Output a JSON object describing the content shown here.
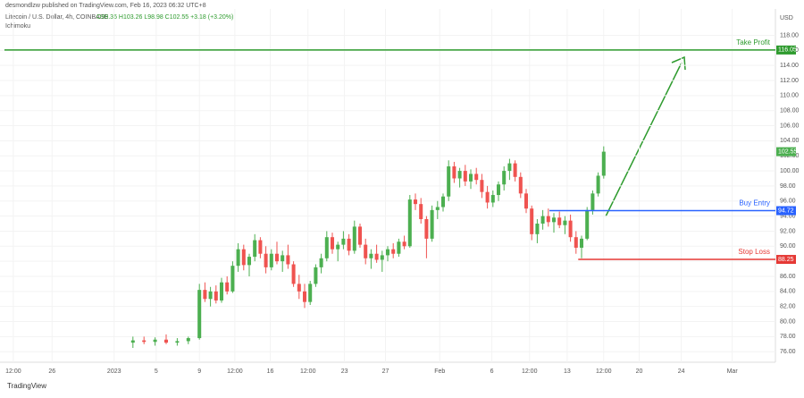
{
  "header": {
    "publisher": "desmondlzw published on TradingView.com, Feb 16, 2023 06:32 UTC+8",
    "symbol": "Litecoin / U.S. Dollar, 4h, COINBASE",
    "ohlc": "O99.36  H103.26  L98.98  C102.55  +3.18 (+3.20%)",
    "indicator": "Ichimoku"
  },
  "footer": {
    "brand": "TradingView"
  },
  "chart_data": {
    "type": "candlestick",
    "currency": "USD",
    "up_color": "#4caf50",
    "down_color": "#ef5350",
    "x": [
      12,
      13,
      14,
      15,
      16,
      17,
      18,
      18.5,
      19,
      19.5,
      20,
      20.5,
      21,
      21.5,
      22,
      22.5,
      23,
      23.5,
      24,
      24.5,
      25,
      25.5,
      26,
      26.5,
      27,
      27.5,
      28,
      28.5,
      29,
      29.5,
      30,
      30.5,
      31,
      31.5,
      32,
      32.5,
      33,
      33.5,
      34,
      34.5,
      35,
      35.5,
      36,
      36.5,
      37,
      37.5,
      38,
      38.5,
      39,
      39.5,
      40,
      40.5,
      41,
      41.5,
      42,
      42.5,
      43,
      43.5,
      44,
      44.5,
      45,
      45.5,
      46,
      46.5,
      47,
      47.5,
      48,
      48.5,
      49,
      49.5,
      50,
      50.5,
      51,
      51.5,
      52,
      52.5,
      53,
      53.5,
      54,
      54.5
    ],
    "open": [
      77.2,
      77.5,
      77.3,
      77.6,
      77.2,
      77.4,
      77.8,
      84.2,
      83.0,
      84.0,
      82.8,
      85.2,
      84.0,
      87.4,
      89.6,
      87.5,
      88.6,
      90.8,
      89.0,
      87.2,
      89.0,
      88.0,
      88.8,
      87.6,
      85.0,
      84.0,
      82.6,
      85.0,
      87.2,
      88.4,
      91.2,
      89.6,
      90.2,
      91.0,
      89.4,
      92.6,
      90.2,
      88.4,
      89.0,
      88.2,
      88.8,
      89.6,
      89.0,
      90.6,
      90.0,
      96.2,
      95.6,
      93.6,
      91.0,
      94.8,
      95.2,
      96.6,
      100.6,
      99.0,
      100.0,
      98.6,
      99.6,
      98.8,
      97.2,
      95.8,
      96.8,
      98.2,
      100.0,
      101.0,
      99.2,
      97.0,
      95.0,
      91.6,
      93.0,
      94.0,
      93.2,
      93.8,
      92.8,
      93.4,
      91.2,
      89.8,
      91.0,
      94.8,
      97.0,
      99.36
    ],
    "high": [
      78.0,
      78.0,
      77.9,
      78.3,
      77.8,
      78.0,
      85.0,
      85.2,
      84.6,
      84.8,
      85.8,
      86.0,
      88.0,
      90.4,
      90.2,
      89.0,
      91.6,
      91.2,
      90.0,
      89.6,
      90.6,
      89.4,
      90.2,
      88.0,
      86.2,
      85.0,
      85.4,
      87.6,
      89.0,
      92.0,
      91.8,
      90.6,
      92.0,
      91.6,
      93.4,
      93.0,
      91.0,
      89.6,
      90.2,
      89.4,
      90.0,
      90.4,
      91.0,
      91.4,
      96.8,
      97.0,
      96.4,
      94.0,
      95.4,
      96.0,
      97.0,
      101.4,
      101.2,
      100.4,
      100.8,
      100.2,
      100.4,
      99.6,
      98.0,
      97.4,
      98.6,
      100.6,
      101.6,
      101.4,
      99.8,
      97.6,
      95.4,
      93.6,
      94.8,
      95.0,
      94.4,
      94.6,
      94.0,
      94.2,
      92.0,
      91.4,
      95.2,
      97.4,
      99.8,
      103.26
    ],
    "low": [
      76.5,
      77.0,
      76.8,
      77.0,
      76.8,
      77.0,
      77.6,
      82.6,
      82.0,
      82.4,
      82.5,
      83.6,
      83.8,
      86.6,
      86.8,
      86.0,
      88.0,
      88.4,
      86.4,
      86.8,
      87.6,
      86.6,
      87.0,
      84.6,
      83.0,
      81.8,
      82.2,
      84.6,
      86.4,
      88.0,
      89.0,
      88.0,
      89.6,
      88.8,
      89.0,
      89.8,
      87.6,
      87.0,
      87.8,
      86.6,
      88.0,
      88.4,
      88.6,
      89.6,
      89.8,
      94.8,
      93.0,
      88.4,
      90.6,
      93.6,
      94.6,
      96.0,
      98.4,
      97.8,
      98.0,
      97.6,
      98.2,
      96.4,
      95.0,
      95.2,
      96.0,
      97.4,
      98.8,
      98.6,
      96.4,
      94.4,
      90.8,
      90.4,
      92.2,
      92.6,
      91.8,
      92.4,
      91.6,
      90.6,
      89.0,
      88.4,
      90.8,
      94.2,
      96.6,
      98.98
    ],
    "close": [
      77.5,
      77.3,
      77.6,
      77.2,
      77.4,
      77.8,
      84.2,
      83.0,
      84.0,
      82.8,
      85.2,
      84.0,
      87.4,
      89.6,
      87.5,
      88.6,
      90.8,
      89.0,
      87.2,
      89.0,
      88.0,
      88.8,
      87.6,
      85.0,
      84.0,
      82.6,
      85.0,
      87.2,
      88.4,
      91.2,
      89.6,
      90.2,
      91.0,
      89.4,
      92.6,
      90.2,
      88.4,
      89.0,
      88.2,
      88.8,
      89.6,
      89.0,
      90.6,
      90.0,
      96.2,
      95.6,
      93.6,
      91.0,
      94.8,
      95.2,
      96.6,
      100.6,
      99.0,
      100.0,
      98.6,
      99.6,
      98.8,
      97.2,
      95.8,
      96.8,
      98.2,
      100.0,
      101.0,
      99.2,
      97.0,
      95.0,
      91.6,
      93.0,
      94.0,
      93.2,
      93.8,
      92.8,
      93.4,
      91.2,
      89.8,
      91.0,
      94.8,
      97.0,
      99.36,
      102.55
    ],
    "xlim": [
      0,
      70
    ],
    "xticks": [
      {
        "value": 1.2,
        "label": "12:00"
      },
      {
        "value": 4.7,
        "label": "26"
      },
      {
        "value": 10.3,
        "label": "2023"
      },
      {
        "value": 14.1,
        "label": "5"
      },
      {
        "value": 18.0,
        "label": "9"
      },
      {
        "value": 21.2,
        "label": "12:00"
      },
      {
        "value": 24.4,
        "label": "16"
      },
      {
        "value": 27.8,
        "label": "12:00"
      },
      {
        "value": 31.1,
        "label": "23"
      },
      {
        "value": 34.8,
        "label": "27"
      },
      {
        "value": 39.7,
        "label": "Feb"
      },
      {
        "value": 44.4,
        "label": "6"
      },
      {
        "value": 47.8,
        "label": "12:00"
      },
      {
        "value": 51.2,
        "label": "13"
      },
      {
        "value": 54.5,
        "label": "12:00"
      },
      {
        "value": 57.7,
        "label": "20"
      },
      {
        "value": 61.5,
        "label": "24"
      },
      {
        "value": 66.1,
        "label": "Mar"
      }
    ],
    "ylim": [
      74.6,
      121.5
    ],
    "yticks": [
      {
        "value": 76,
        "label": "76.00"
      },
      {
        "value": 78,
        "label": "78.00"
      },
      {
        "value": 80,
        "label": "80.00"
      },
      {
        "value": 82,
        "label": "82.00"
      },
      {
        "value": 84,
        "label": "84.00"
      },
      {
        "value": 86,
        "label": "86.00"
      },
      {
        "value": 88,
        "label": "88.00"
      },
      {
        "value": 90,
        "label": "90.00"
      },
      {
        "value": 92,
        "label": "92.00"
      },
      {
        "value": 94,
        "label": "94.00"
      },
      {
        "value": 96,
        "label": "96.00"
      },
      {
        "value": 98,
        "label": "98.00"
      },
      {
        "value": 100,
        "label": "100.00"
      },
      {
        "value": 102,
        "label": "102.00"
      },
      {
        "value": 104,
        "label": "104.00"
      },
      {
        "value": 106,
        "label": "106.00"
      },
      {
        "value": 108,
        "label": "108.00"
      },
      {
        "value": 110,
        "label": "110.00"
      },
      {
        "value": 112,
        "label": "112.00"
      },
      {
        "value": 114,
        "label": "114.00"
      },
      {
        "value": 116,
        "label": "116.00"
      },
      {
        "value": 118,
        "label": "118.00"
      }
    ],
    "levels": [
      {
        "name": "Take Profit",
        "value": 116.05,
        "color": "#2e9b2e",
        "from_x": 0.4
      },
      {
        "name": "Buy Entry",
        "value": 94.72,
        "color": "#2962ff",
        "from_x": 49.6
      },
      {
        "name": "Stop Loss",
        "value": 88.25,
        "color": "#e53935",
        "from_x": 52.2
      }
    ]
  }
}
